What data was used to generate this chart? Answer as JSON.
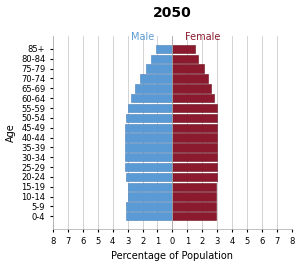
{
  "title": "2050",
  "xlabel": "Percentage of Population",
  "ylabel": "Age",
  "age_groups": [
    "0-4",
    "5-9",
    "10-14",
    "15-19",
    "20-24",
    "25-29",
    "30-34",
    "35-39",
    "40-44",
    "45-49",
    "50-54",
    "55-59",
    "60-64",
    "65-69",
    "70-74",
    "75-79",
    "80-84",
    "85+"
  ],
  "male": [
    3.1,
    3.1,
    3.0,
    3.0,
    3.1,
    3.2,
    3.2,
    3.2,
    3.2,
    3.2,
    3.1,
    3.0,
    2.8,
    2.5,
    2.2,
    1.8,
    1.4,
    1.1
  ],
  "female": [
    2.9,
    2.9,
    2.9,
    2.9,
    3.0,
    3.0,
    3.0,
    3.0,
    3.0,
    3.0,
    3.0,
    3.0,
    2.8,
    2.6,
    2.4,
    2.1,
    1.7,
    1.5
  ],
  "male_color": "#5b9bd5",
  "female_color": "#8b1a2e",
  "male_label_color": "#5b9bd5",
  "female_label_color": "#8b1a2e",
  "male_edge_color": "#4a7fb5",
  "female_edge_color": "#6b0f1e",
  "bar_height": 0.85,
  "xlim": 8,
  "title_fontsize": 10,
  "label_fontsize": 7,
  "tick_fontsize": 6,
  "legend_fontsize": 7,
  "background_color": "#ffffff"
}
